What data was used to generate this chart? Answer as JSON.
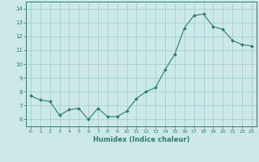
{
  "x": [
    0,
    1,
    2,
    3,
    4,
    5,
    6,
    7,
    8,
    9,
    10,
    11,
    12,
    13,
    14,
    15,
    16,
    17,
    18,
    19,
    20,
    21,
    22,
    23
  ],
  "y": [
    7.7,
    7.4,
    7.3,
    6.3,
    6.7,
    6.8,
    6.0,
    6.8,
    6.2,
    6.2,
    6.6,
    7.5,
    8.0,
    8.3,
    9.6,
    10.7,
    12.6,
    13.5,
    13.6,
    12.7,
    12.5,
    11.7,
    11.4,
    11.3
  ],
  "line_color": "#2e7d6e",
  "marker_color": "#2e7d6e",
  "bg_color": "#cce8e8",
  "grid_color": "#99cccc",
  "xlabel": "Humidex (Indice chaleur)",
  "xlabel_color": "#2e7d6e",
  "xlim": [
    -0.5,
    23.5
  ],
  "ylim": [
    5.5,
    14.5
  ],
  "yticks": [
    6,
    7,
    8,
    9,
    10,
    11,
    12,
    13,
    14
  ],
  "xticks": [
    0,
    1,
    2,
    3,
    4,
    5,
    6,
    7,
    8,
    9,
    10,
    11,
    12,
    13,
    14,
    15,
    16,
    17,
    18,
    19,
    20,
    21,
    22,
    23
  ],
  "tick_color": "#2e7d6e",
  "figsize": [
    3.2,
    2.0
  ],
  "dpi": 100
}
